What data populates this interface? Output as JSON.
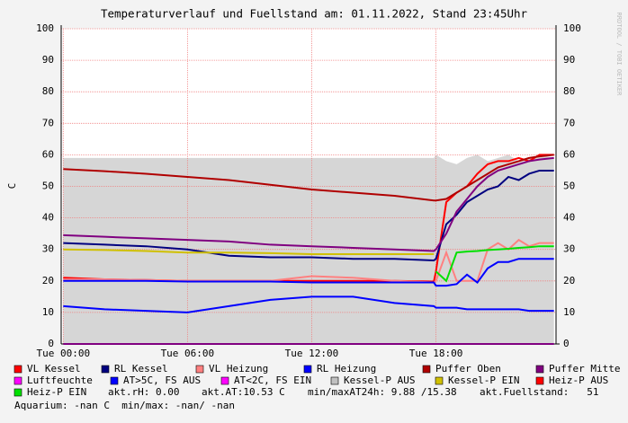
{
  "chart_data": {
    "type": "line",
    "title": "Temperaturverlauf und Fuellstand am: 01.11.2022, Stand 23:45Uhr",
    "y_label": "C",
    "watermark": "RRDTOOL / TOBI OETIKER",
    "x": [
      0,
      2,
      4,
      6,
      8,
      10,
      12,
      14,
      16,
      17.9,
      18,
      18.5,
      19,
      19.5,
      20,
      20.5,
      21,
      21.5,
      22,
      22.5,
      23,
      23.7
    ],
    "xlim": [
      -0.1,
      23.8
    ],
    "xticks": [
      {
        "value": 0,
        "label": "Tue 00:00"
      },
      {
        "value": 6,
        "label": "Tue 06:00"
      },
      {
        "value": 12,
        "label": "Tue 12:00"
      },
      {
        "value": 18,
        "label": "Tue 18:00"
      }
    ],
    "ylim": [
      0,
      100
    ],
    "yticks": [
      0,
      10,
      20,
      30,
      40,
      50,
      60,
      70,
      80,
      90,
      100
    ],
    "grid": true,
    "series": [
      {
        "name": "Kessel-P AUS",
        "color": "#c0c0c0",
        "kind": "area",
        "values": [
          59,
          59,
          59,
          59,
          59,
          59,
          59,
          59,
          59,
          59,
          60,
          58,
          57,
          59,
          60,
          58,
          59,
          60,
          58,
          59,
          60,
          59
        ]
      },
      {
        "name": "VL Kessel",
        "color": "#ff0000",
        "kind": "line",
        "values": [
          21,
          20.5,
          20.3,
          20,
          20,
          20,
          20,
          20,
          20,
          19.8,
          23,
          45,
          48,
          50,
          54,
          57,
          58,
          58,
          59,
          58,
          60,
          60
        ]
      },
      {
        "name": "RL Kessel",
        "color": "#000080",
        "kind": "line",
        "values": [
          32,
          31.5,
          31,
          30,
          28,
          27.5,
          27.5,
          27,
          27,
          26.5,
          27,
          38,
          41,
          45,
          47,
          49,
          50,
          53,
          52,
          54,
          55,
          55
        ]
      },
      {
        "name": "VL Heizung",
        "color": "#ff8080",
        "kind": "line",
        "values": [
          20.5,
          20.5,
          20.3,
          20,
          20,
          20,
          21.5,
          21,
          20,
          19.5,
          20,
          29,
          20,
          20,
          20,
          30,
          32,
          30,
          33,
          31,
          32,
          32
        ]
      },
      {
        "name": "RL Heizung",
        "color": "#0000ff",
        "kind": "line",
        "values": [
          20,
          20,
          20,
          19.8,
          19.8,
          19.8,
          19.5,
          19.5,
          19.5,
          19.5,
          18.5,
          18.5,
          19,
          22,
          19.5,
          24,
          26,
          26,
          27,
          27,
          27,
          27
        ]
      },
      {
        "name": "Puffer Oben",
        "color": "#b00000",
        "kind": "line",
        "values": [
          55.5,
          54.8,
          54,
          53,
          52,
          50.5,
          49,
          48,
          47,
          45.5,
          45.5,
          46,
          48,
          50,
          52,
          54,
          56,
          57,
          58,
          59,
          59.5,
          60
        ]
      },
      {
        "name": "Puffer Mitte",
        "color": "#800080",
        "kind": "line",
        "values": [
          34.5,
          34,
          33.5,
          33,
          32.5,
          31.5,
          31,
          30.5,
          30,
          29.5,
          30,
          35,
          42,
          46,
          50,
          53,
          55,
          56,
          57,
          58,
          58.5,
          59
        ]
      },
      {
        "name": "Luftfeuchte",
        "color": "#ff00ff",
        "kind": "line",
        "values": [
          0,
          0,
          0,
          0,
          0,
          0,
          0,
          0,
          0,
          0,
          0,
          0,
          0,
          0,
          0,
          0,
          0,
          0,
          0,
          0,
          0,
          0
        ]
      },
      {
        "name": "AT>5C, FS AUS",
        "color": "#0000ff",
        "kind": "line",
        "values": [
          12,
          11,
          10.5,
          10,
          12,
          14,
          15,
          15,
          13,
          12,
          11.5,
          11.5,
          11.5,
          11,
          11,
          11,
          11,
          11,
          11,
          10.5,
          10.5,
          10.5
        ]
      },
      {
        "name": "AT<2C, FS EIN",
        "color": "#ff00ff",
        "kind": "line",
        "values": [
          null,
          null,
          null,
          null,
          null,
          null,
          null,
          null,
          null,
          null,
          null,
          null,
          null,
          null,
          null,
          null,
          null,
          null,
          null,
          null,
          null,
          null
        ]
      },
      {
        "name": "Kessel-P EIN",
        "color": "#d0c000",
        "kind": "line",
        "values": [
          30,
          29.8,
          29.5,
          29,
          29,
          28.8,
          28.5,
          28.5,
          28.5,
          28.5,
          null,
          null,
          null,
          null,
          null,
          null,
          null,
          null,
          null,
          null,
          null,
          null
        ]
      },
      {
        "name": "Heiz-P AUS",
        "color": "#ff0000",
        "kind": "line",
        "values": [
          null,
          null,
          null,
          null,
          null,
          null,
          null,
          null,
          null,
          null,
          null,
          null,
          null,
          null,
          null,
          null,
          null,
          null,
          null,
          null,
          null,
          null
        ]
      },
      {
        "name": "Heiz-P EIN",
        "color": "#00e000",
        "kind": "line",
        "values": [
          null,
          null,
          null,
          null,
          null,
          null,
          null,
          null,
          null,
          null,
          23,
          20,
          29,
          29.3,
          29.5,
          29.8,
          30,
          30.2,
          30.5,
          30.7,
          31,
          31
        ]
      }
    ],
    "legend_order": [
      1,
      2,
      3,
      4,
      5,
      6,
      7,
      8,
      9,
      0,
      10,
      11,
      12
    ],
    "status": [
      "akt.rH: 0.00",
      "akt.AT:10.53 C",
      "min/maxAT24h: 9.88 /15.38",
      "akt.Fuellstand:   51"
    ],
    "footer": "Aquarium: -nan C  min/max: -nan/ -nan"
  }
}
